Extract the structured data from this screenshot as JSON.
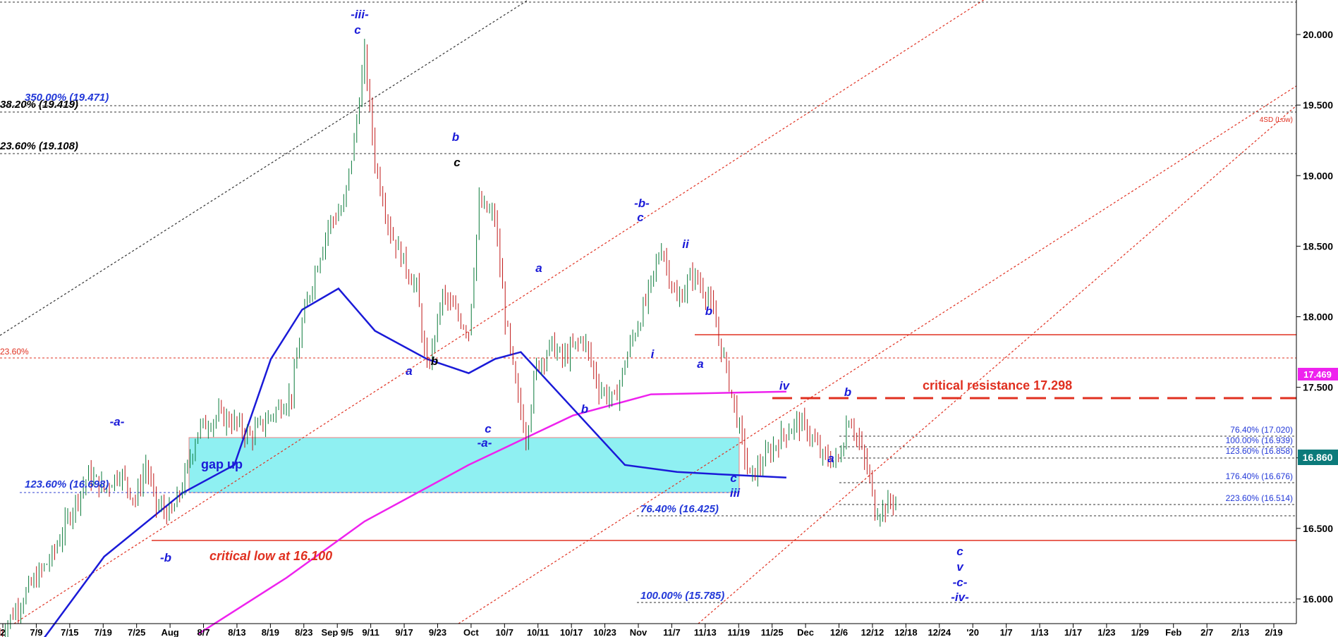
{
  "chart_data": {
    "type": "candlestick",
    "ylim": [
      15.7,
      20.35
    ],
    "price_ticks": [
      "20.000",
      "19.500",
      "19.000",
      "18.500",
      "18.000",
      "17.500",
      "17.000",
      "16.500",
      "16.000"
    ],
    "date_ticks": [
      "2",
      "7/9",
      "7/15",
      "7/19",
      "7/25",
      "Aug",
      "8/7",
      "8/13",
      "8/19",
      "8/23",
      "Sep 9/5",
      "9/11",
      "9/17",
      "9/23",
      "Oct",
      "10/7",
      "10/11",
      "10/17",
      "10/23",
      "Nov",
      "11/7",
      "11/13",
      "11/19",
      "11/25",
      "Dec",
      "12/6",
      "12/12",
      "12/18",
      "12/24",
      "'20",
      "1/7",
      "1/13",
      "1/17",
      "1/23",
      "1/29",
      "Feb",
      "2/7",
      "2/13",
      "2/19"
    ],
    "price_path": [
      [
        0,
        15.75
      ],
      [
        6,
        16.1
      ],
      [
        10,
        16.3
      ],
      [
        14,
        16.65
      ],
      [
        17,
        16.88
      ],
      [
        20,
        16.78
      ],
      [
        23,
        16.9
      ],
      [
        26,
        16.7
      ],
      [
        28,
        16.95
      ],
      [
        30,
        16.66
      ],
      [
        33,
        16.6
      ],
      [
        35,
        16.8
      ],
      [
        38,
        17.2
      ],
      [
        42,
        17.3
      ],
      [
        45,
        17.25
      ],
      [
        48,
        17.15
      ],
      [
        52,
        17.3
      ],
      [
        56,
        17.45
      ],
      [
        58,
        17.95
      ],
      [
        60,
        18.25
      ],
      [
        63,
        18.65
      ],
      [
        66,
        18.78
      ],
      [
        68,
        19.25
      ],
      [
        70,
        19.85
      ],
      [
        72,
        19.1
      ],
      [
        75,
        18.6
      ],
      [
        78,
        18.35
      ],
      [
        80,
        18.2
      ],
      [
        82,
        17.6
      ],
      [
        85,
        18.15
      ],
      [
        88,
        18.0
      ],
      [
        90,
        17.9
      ],
      [
        92,
        18.8
      ],
      [
        95,
        18.7
      ],
      [
        97,
        18.0
      ],
      [
        99,
        17.5
      ],
      [
        101,
        17.15
      ],
      [
        103,
        17.65
      ],
      [
        106,
        17.8
      ],
      [
        108,
        17.7
      ],
      [
        112,
        17.85
      ],
      [
        115,
        17.5
      ],
      [
        118,
        17.4
      ],
      [
        121,
        17.8
      ],
      [
        124,
        18.1
      ],
      [
        127,
        18.5
      ],
      [
        130,
        18.1
      ],
      [
        133,
        18.3
      ],
      [
        136,
        18.15
      ],
      [
        139,
        17.7
      ],
      [
        142,
        17.2
      ],
      [
        144,
        16.85
      ],
      [
        147,
        17.0
      ],
      [
        150,
        17.15
      ],
      [
        153,
        17.25
      ],
      [
        155,
        17.2
      ],
      [
        158,
        17.0
      ],
      [
        161,
        16.98
      ],
      [
        163,
        17.3
      ],
      [
        165,
        17.1
      ],
      [
        167,
        16.85
      ],
      [
        168,
        16.62
      ],
      [
        170,
        16.65
      ],
      [
        172,
        16.72
      ]
    ],
    "ma_blue": [
      [
        8,
        15.7
      ],
      [
        20,
        16.3
      ],
      [
        35,
        16.75
      ],
      [
        45,
        16.95
      ],
      [
        52,
        17.7
      ],
      [
        58,
        18.05
      ],
      [
        65,
        18.2
      ],
      [
        72,
        17.9
      ],
      [
        82,
        17.7
      ],
      [
        90,
        17.6
      ],
      [
        95,
        17.7
      ],
      [
        100,
        17.75
      ],
      [
        110,
        17.35
      ],
      [
        120,
        16.95
      ],
      [
        130,
        16.9
      ],
      [
        140,
        16.88
      ],
      [
        151,
        16.86
      ]
    ],
    "ma_magenta": [
      [
        38,
        15.75
      ],
      [
        55,
        16.15
      ],
      [
        70,
        16.55
      ],
      [
        90,
        16.95
      ],
      [
        110,
        17.3
      ],
      [
        125,
        17.45
      ],
      [
        151,
        17.469
      ]
    ],
    "last_price": "16.860",
    "magenta_label": "17.469",
    "ma_label_hidden": "16.860",
    "wave_labels": {
      "iii_top": "-iii-",
      "c_top": "c",
      "b_sep": "b",
      "c_sep": "c",
      "b_oct": "-b-",
      "c_oct": "c",
      "ii": "ii",
      "b_nov": "b",
      "a_nov": "a",
      "i": "i",
      "a_oct": "a",
      "a_sep": "a",
      "b_sep2": "b",
      "c_oct2": "c",
      "a_minus": "-a-",
      "b_oct2": "b",
      "a_jul": "-a-",
      "b_aug": "-b",
      "iv": "iv",
      "b_dec": "b",
      "a_dec": "a",
      "c_nov": "c",
      "iii": "iii",
      "c_fut": "c",
      "v_fut": "v",
      "c_minus": "-c-",
      "iv_minus": "-iv-"
    },
    "fib_levels": {
      "f350": "350.00% (19.471)",
      "f38": "38.20% (19.419)",
      "f236": "23.60% (19.108)",
      "f36": "23.60%",
      "f1236a": "123.60% (16.698)",
      "f764a": "76.40% (16.425)",
      "f100a": "100.00% (15.785)",
      "f764b": "76.40% (17.020)",
      "f100b": "100.00% (16.939)",
      "f1236b": "123.60% (16.858)",
      "f1764": "176.40% (16.676)",
      "f2236": "223.60% (16.514)"
    },
    "annotations": {
      "gap": "gap up",
      "crit_low": "critical low at 16.100",
      "crit_res": "critical resistance 17.298",
      "sd": "4SD (Low)"
    }
  }
}
